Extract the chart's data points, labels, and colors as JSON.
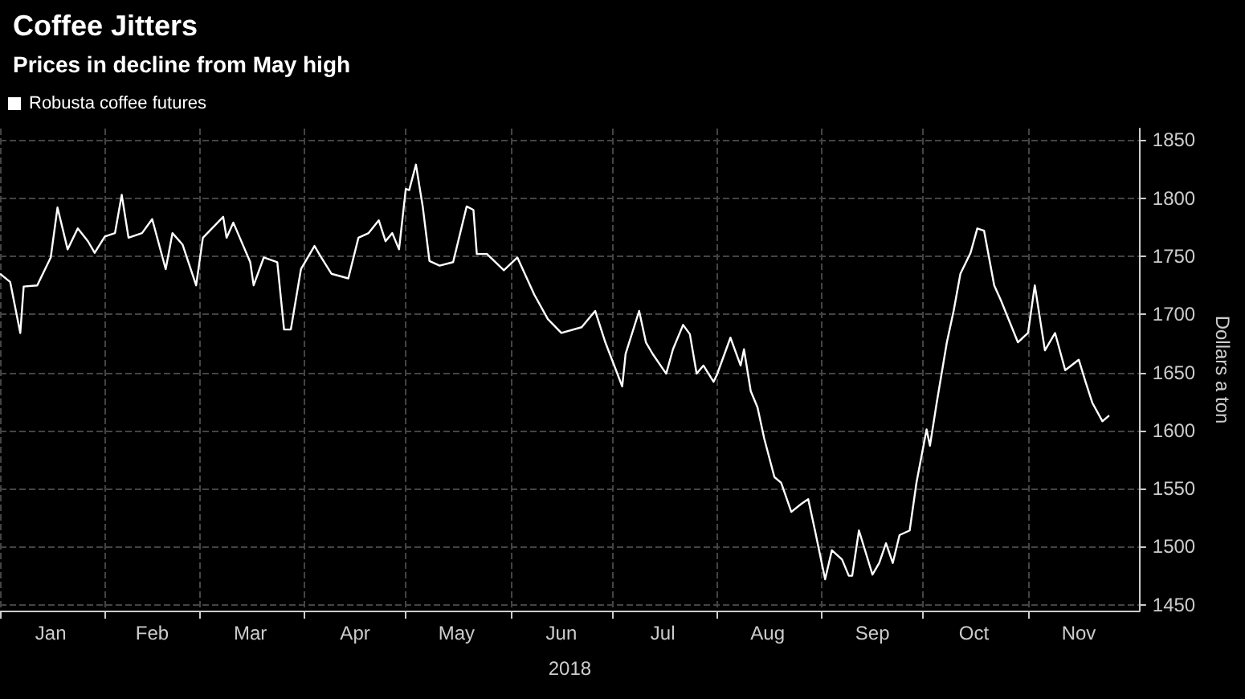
{
  "chart_data": {
    "type": "line",
    "title": "Coffee Jitters",
    "subtitle": "Prices in decline from May high",
    "xlabel": "2018",
    "ylabel": "Dollars a ton",
    "legend": "top left",
    "grid": true,
    "marker": "none",
    "line_style": "solid",
    "xlim": [
      "2018-01-01",
      "2018-12-04"
    ],
    "ylim": [
      1445,
      1860
    ],
    "yticks": [
      1450,
      1500,
      1550,
      1600,
      1650,
      1700,
      1750,
      1800,
      1850
    ],
    "xticks": [
      {
        "value": "2018-01-01",
        "label": null
      },
      {
        "value": "2018-01-16",
        "label": "Jan"
      },
      {
        "value": "2018-02-01",
        "label": null
      },
      {
        "value": "2018-02-15",
        "label": "Feb"
      },
      {
        "value": "2018-03-01",
        "label": null
      },
      {
        "value": "2018-03-16",
        "label": "Mar"
      },
      {
        "value": "2018-04-01",
        "label": null
      },
      {
        "value": "2018-04-16",
        "label": "Apr"
      },
      {
        "value": "2018-05-01",
        "label": null
      },
      {
        "value": "2018-05-16",
        "label": "May"
      },
      {
        "value": "2018-06-01",
        "label": null
      },
      {
        "value": "2018-06-16",
        "label": "Jun"
      },
      {
        "value": "2018-07-01",
        "label": null
      },
      {
        "value": "2018-07-16",
        "label": "Jul"
      },
      {
        "value": "2018-08-01",
        "label": null
      },
      {
        "value": "2018-08-16",
        "label": "Aug"
      },
      {
        "value": "2018-09-01",
        "label": null
      },
      {
        "value": "2018-09-16",
        "label": "Sep"
      },
      {
        "value": "2018-10-01",
        "label": null
      },
      {
        "value": "2018-10-16",
        "label": "Oct"
      },
      {
        "value": "2018-11-01",
        "label": null
      },
      {
        "value": "2018-11-16",
        "label": "Nov"
      }
    ],
    "x": [
      "2018-01-01",
      "2018-01-04",
      "2018-01-07",
      "2018-01-08",
      "2018-01-12",
      "2018-01-16",
      "2018-01-18",
      "2018-01-21",
      "2018-01-24",
      "2018-01-27",
      "2018-01-29",
      "2018-02-01",
      "2018-02-04",
      "2018-02-06",
      "2018-02-08",
      "2018-02-12",
      "2018-02-15",
      "2018-02-19",
      "2018-02-21",
      "2018-02-24",
      "2018-02-28",
      "2018-03-02",
      "2018-03-08",
      "2018-03-09",
      "2018-03-11",
      "2018-03-16",
      "2018-03-17",
      "2018-03-20",
      "2018-03-24",
      "2018-03-26",
      "2018-03-28",
      "2018-03-31",
      "2018-04-04",
      "2018-04-06",
      "2018-04-09",
      "2018-04-14",
      "2018-04-17",
      "2018-04-20",
      "2018-04-23",
      "2018-04-25",
      "2018-04-27",
      "2018-04-29",
      "2018-05-01",
      "2018-05-02",
      "2018-05-04",
      "2018-05-06",
      "2018-05-08",
      "2018-05-11",
      "2018-05-15",
      "2018-05-19",
      "2018-05-21",
      "2018-05-22",
      "2018-05-25",
      "2018-05-30",
      "2018-06-03",
      "2018-06-08",
      "2018-06-12",
      "2018-06-16",
      "2018-06-22",
      "2018-06-26",
      "2018-06-29",
      "2018-07-04",
      "2018-07-05",
      "2018-07-09",
      "2018-07-11",
      "2018-07-13",
      "2018-07-17",
      "2018-07-19",
      "2018-07-22",
      "2018-07-24",
      "2018-07-26",
      "2018-07-28",
      "2018-07-31",
      "2018-08-01",
      "2018-08-05",
      "2018-08-08",
      "2018-08-09",
      "2018-08-11",
      "2018-08-13",
      "2018-08-15",
      "2018-08-18",
      "2018-08-20",
      "2018-08-23",
      "2018-08-26",
      "2018-08-28",
      "2018-08-30",
      "2018-09-02",
      "2018-09-04",
      "2018-09-07",
      "2018-09-09",
      "2018-09-10",
      "2018-09-12",
      "2018-09-16",
      "2018-09-18",
      "2018-09-20",
      "2018-09-22",
      "2018-09-24",
      "2018-09-27",
      "2018-09-29",
      "2018-10-02",
      "2018-10-03",
      "2018-10-05",
      "2018-10-08",
      "2018-10-10",
      "2018-10-12",
      "2018-10-15",
      "2018-10-17",
      "2018-10-19",
      "2018-10-22",
      "2018-10-24",
      "2018-10-29",
      "2018-11-01",
      "2018-11-03",
      "2018-11-06",
      "2018-11-09",
      "2018-11-12",
      "2018-11-16",
      "2018-11-18",
      "2018-11-20",
      "2018-11-23",
      "2018-11-25"
    ],
    "series": [
      {
        "name": "Robusta coffee futures",
        "color": "#ffffff",
        "values": [
          1735,
          1728,
          1684,
          1724,
          1725,
          1749,
          1792,
          1756,
          1774,
          1763,
          1753,
          1767,
          1770,
          1803,
          1766,
          1770,
          1782,
          1739,
          1770,
          1760,
          1725,
          1766,
          1784,
          1766,
          1779,
          1745,
          1725,
          1749,
          1745,
          1687,
          1687,
          1739,
          1759,
          1749,
          1735,
          1731,
          1766,
          1770,
          1781,
          1763,
          1770,
          1756,
          1808,
          1807,
          1829,
          1793,
          1746,
          1742,
          1745,
          1793,
          1790,
          1752,
          1752,
          1738,
          1749,
          1717,
          1696,
          1684,
          1689,
          1703,
          1676,
          1638,
          1666,
          1703,
          1676,
          1666,
          1649,
          1670,
          1691,
          1683,
          1649,
          1656,
          1642,
          1648,
          1680,
          1656,
          1670,
          1634,
          1620,
          1593,
          1560,
          1555,
          1530,
          1537,
          1541,
          1514,
          1472,
          1497,
          1489,
          1475,
          1475,
          1514,
          1476,
          1486,
          1503,
          1486,
          1510,
          1514,
          1555,
          1601,
          1587,
          1624,
          1676,
          1703,
          1735,
          1753,
          1774,
          1772,
          1725,
          1712,
          1676,
          1684,
          1725,
          1669,
          1684,
          1652,
          1661,
          1642,
          1624,
          1608,
          1613
        ]
      }
    ]
  }
}
